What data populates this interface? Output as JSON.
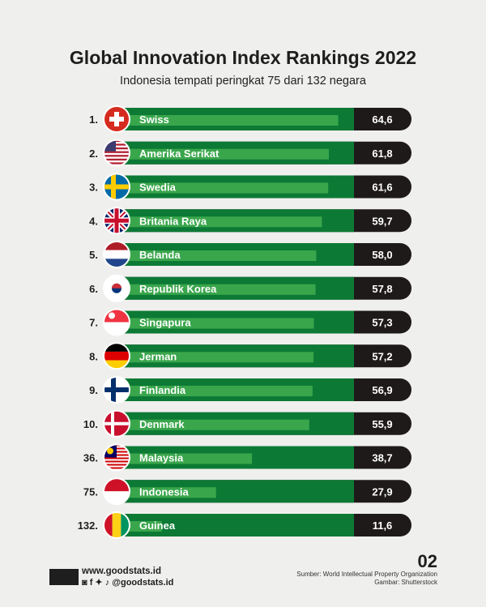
{
  "header": {
    "title": "Global Innovation Index Rankings 2022",
    "subtitle": "Indonesia tempati peringkat 75 dari 132 negara"
  },
  "chart_data": {
    "type": "bar",
    "orientation": "horizontal",
    "title": "Global Innovation Index Rankings 2022",
    "subtitle": "Indonesia tempati peringkat 75 dari 132 negara",
    "ranks": [
      "1.",
      "2.",
      "3.",
      "4.",
      "5.",
      "6.",
      "7.",
      "8.",
      "9.",
      "10.",
      "36.",
      "75.",
      "132."
    ],
    "categories": [
      "Swiss",
      "Amerika Serikat",
      "Swedia",
      "Britania Raya",
      "Belanda",
      "Republik Korea",
      "Singapura",
      "Jerman",
      "Finlandia",
      "Denmark",
      "Malaysia",
      "Indonesia",
      "Guinea"
    ],
    "value_labels": [
      "64,6",
      "61,8",
      "61,6",
      "59,7",
      "58,0",
      "57,8",
      "57,3",
      "57,2",
      "56,9",
      "55,9",
      "38,7",
      "27,9",
      "11,6"
    ],
    "values": [
      64.6,
      61.8,
      61.6,
      59.7,
      58.0,
      57.8,
      57.3,
      57.2,
      56.9,
      55.9,
      38.7,
      27.9,
      11.6
    ],
    "flags": [
      "switzerland",
      "usa",
      "sweden",
      "uk",
      "netherlands",
      "south-korea",
      "singapore",
      "germany",
      "finland",
      "denmark",
      "malaysia",
      "indonesia",
      "guinea"
    ],
    "colors": {
      "bar": "#0c7a35",
      "inner_bar": "#3aa64c",
      "value_box": "#1f1a1a",
      "text": "#ffffff"
    }
  },
  "footer": {
    "website": "www.goodstats.id",
    "social": "@goodstats.id",
    "page": "02",
    "source": "Sumber:  World Intellectual Property Organization",
    "image_credit": "Gambar: Shutterstock"
  }
}
